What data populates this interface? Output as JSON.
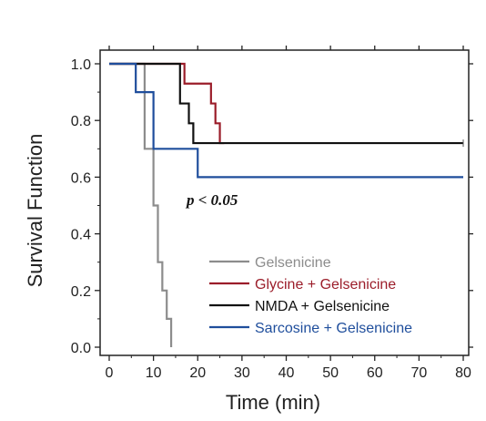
{
  "chart_data": {
    "type": "line",
    "step": true,
    "title": "",
    "xlabel": "Time (min)",
    "ylabel": "Survival Function",
    "xlim": [
      0,
      80
    ],
    "ylim": [
      0,
      1.0
    ],
    "x_ticks": [
      0,
      10,
      20,
      30,
      40,
      50,
      60,
      70,
      80
    ],
    "y_ticks": [
      0.0,
      0.2,
      0.4,
      0.6,
      0.8,
      1.0
    ],
    "y_tick_labels": [
      "0.0",
      "0.2",
      "0.4",
      "0.6",
      "0.8",
      "1.0"
    ],
    "grid": false,
    "legend_position": "bottom-right",
    "annotation": "p < 0.05",
    "series": [
      {
        "name": "Gelsenicine",
        "color": "#8c8c8c",
        "x": [
          0,
          8,
          9,
          10,
          11,
          12,
          13,
          14
        ],
        "y": [
          1.0,
          0.7,
          0.7,
          0.5,
          0.3,
          0.2,
          0.1,
          0.0
        ]
      },
      {
        "name": "Glycine + Gelsenicine",
        "color": "#9b1d2a",
        "x": [
          0,
          16,
          17,
          23,
          24,
          25,
          26
        ],
        "y": [
          1.0,
          1.0,
          0.93,
          0.86,
          0.79,
          0.72,
          0.72
        ]
      },
      {
        "name": "NMDA + Gelsenicine",
        "color": "#111111",
        "x": [
          0,
          15,
          16,
          18,
          19,
          20,
          80
        ],
        "y": [
          1.0,
          1.0,
          0.86,
          0.79,
          0.72,
          0.72,
          0.72
        ]
      },
      {
        "name": "Sarcosine + Gelsenicine",
        "color": "#1f4e9c",
        "x": [
          0,
          6,
          9,
          10,
          20,
          80
        ],
        "y": [
          1.0,
          0.9,
          0.9,
          0.7,
          0.6,
          0.6
        ]
      }
    ]
  }
}
